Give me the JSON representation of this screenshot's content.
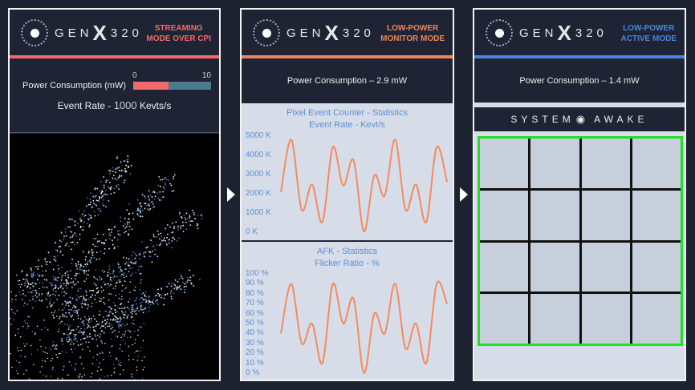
{
  "logo": {
    "prefix": "GEN",
    "x": "X",
    "suffix": "320"
  },
  "panel1": {
    "mode_line1": "STREAMING",
    "mode_line2": "MODE OVER CPI",
    "mode_color": "#f26b6b",
    "power_label": "Power Consumption (mW)",
    "scale_min": "0",
    "scale_max": "10",
    "power_fraction": 0.45,
    "event_rate_label": "Event Rate -",
    "event_rate_value": "1000",
    "event_rate_unit": "Kevts/s"
  },
  "panel2": {
    "mode_line1": "LOW-POWER",
    "mode_line2": "MONITOR MODE",
    "mode_color": "#f0845a",
    "power_text": "Power Consumption – 2.9 mW",
    "chart1": {
      "title": "Pixel Event Counter - Statistics",
      "subtitle": "Event Rate -   Kevt/s",
      "yticks": [
        "5000 K",
        "4000 K",
        "3000 K",
        "2000 K",
        "1000 K",
        "0 K"
      ]
    },
    "chart2": {
      "title": "AFK - Statistics",
      "subtitle": "Flicker Ratio -   %",
      "yticks": [
        "100 %",
        "90 %",
        "80 %",
        "70 %",
        "60 %",
        "50 %",
        "40 %",
        "30 %",
        "20 %",
        "10 %",
        "0 %"
      ]
    }
  },
  "panel3": {
    "mode_line1": "LOW-POWER",
    "mode_line2": "ACTIVE MODE",
    "mode_color": "#4a86d8",
    "power_text": "Power Consumption – 1.4 mW",
    "status_left": "SYSTEM",
    "status_right": "AWAKE"
  },
  "chart_data": [
    {
      "type": "line",
      "title": "Pixel Event Counter - Statistics",
      "ylabel": "Event Rate - Kevt/s",
      "ylim": [
        0,
        5000
      ],
      "values": [
        2100,
        4900,
        1150,
        2500,
        500,
        4500,
        2450,
        3800,
        0,
        3000,
        1900,
        4900,
        1150,
        2500,
        500,
        4500,
        2650
      ]
    },
    {
      "type": "line",
      "title": "AFK - Statistics",
      "ylabel": "Flicker Ratio - %",
      "ylim": [
        0,
        100
      ],
      "values": [
        40,
        90,
        30,
        50,
        10,
        90,
        50,
        75,
        0,
        60,
        40,
        90,
        25,
        50,
        10,
        90,
        70
      ]
    }
  ]
}
